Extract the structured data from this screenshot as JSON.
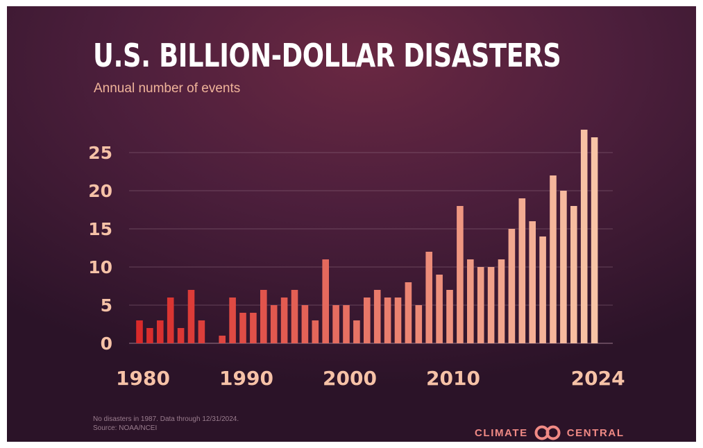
{
  "chart_data": {
    "type": "bar",
    "title": "U.S. BILLION-DOLLAR DISASTERS",
    "subtitle": "Annual number of events",
    "x": [
      1980,
      1981,
      1982,
      1983,
      1984,
      1985,
      1986,
      1987,
      1988,
      1989,
      1990,
      1991,
      1992,
      1993,
      1994,
      1995,
      1996,
      1997,
      1998,
      1999,
      2000,
      2001,
      2002,
      2003,
      2004,
      2005,
      2006,
      2007,
      2008,
      2009,
      2010,
      2011,
      2012,
      2013,
      2014,
      2015,
      2016,
      2017,
      2018,
      2019,
      2020,
      2021,
      2022,
      2023,
      2024
    ],
    "values": [
      3,
      2,
      3,
      6,
      2,
      7,
      3,
      0,
      1,
      6,
      4,
      4,
      7,
      5,
      6,
      7,
      5,
      3,
      11,
      5,
      5,
      3,
      6,
      7,
      6,
      6,
      8,
      5,
      12,
      9,
      7,
      18,
      11,
      10,
      10,
      11,
      15,
      19,
      16,
      14,
      22,
      20,
      18,
      28,
      27
    ],
    "x_tick_labels": [
      "1980",
      "1990",
      "2000",
      "2010",
      "2024"
    ],
    "y_tick_labels": [
      "0",
      "5",
      "10",
      "15",
      "20",
      "25"
    ],
    "ylim": [
      0,
      28
    ],
    "grid": true,
    "colors": {
      "start": "#d82a2a",
      "end": "#f8c4a6",
      "grid": "#9d7a8c"
    },
    "footnote_lines": [
      "No disasters in 1987. Data through 12/31/2024.",
      "Source: NOAA/NCEI"
    ]
  },
  "brand": {
    "left": "CLIMATE",
    "right": "CENTRAL",
    "logo_icon": "interlocking-rings-icon"
  }
}
